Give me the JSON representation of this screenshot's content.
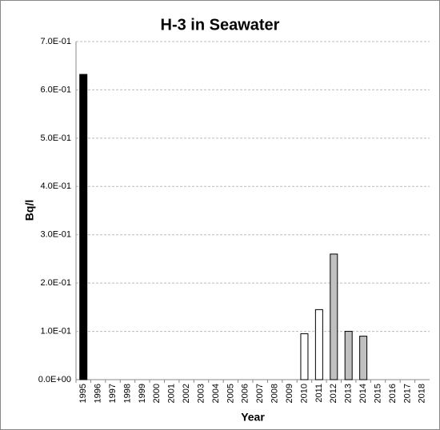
{
  "chart_data": {
    "type": "bar",
    "title": "H-3 in Seawater",
    "x_label": "Year",
    "y_label": "Bq/l",
    "categories": [
      "1995",
      "1996",
      "1997",
      "1998",
      "1999",
      "2000",
      "2001",
      "2002",
      "2003",
      "2004",
      "2005",
      "2006",
      "2007",
      "2008",
      "2009",
      "2010",
      "2011",
      "2012",
      "2013",
      "2014",
      "2015",
      "2016",
      "2017",
      "2018"
    ],
    "values": [
      0.632,
      null,
      null,
      null,
      null,
      null,
      null,
      null,
      null,
      null,
      null,
      null,
      null,
      null,
      null,
      0.095,
      0.145,
      0.26,
      0.1,
      0.09,
      null,
      null,
      null,
      null
    ],
    "colors": [
      "#000000",
      null,
      null,
      null,
      null,
      null,
      null,
      null,
      null,
      null,
      null,
      null,
      null,
      null,
      null,
      "#ffffff",
      "#ffffff",
      "#c0c0c0",
      "#c0c0c0",
      "#c0c0c0",
      null,
      null,
      null,
      null
    ],
    "ylim": [
      0,
      0.7
    ],
    "yticks": [
      {
        "value": 0,
        "label": "0.0E+00"
      },
      {
        "value": 0.1,
        "label": "1.0E-01"
      },
      {
        "value": 0.2,
        "label": "2.0E-01"
      },
      {
        "value": 0.3,
        "label": "3.0E-01"
      },
      {
        "value": 0.4,
        "label": "4.0E-01"
      },
      {
        "value": 0.5,
        "label": "5.0E-01"
      },
      {
        "value": 0.6,
        "label": "6.0E-01"
      },
      {
        "value": 0.7,
        "label": "7.0E-01"
      }
    ],
    "grid": true
  }
}
